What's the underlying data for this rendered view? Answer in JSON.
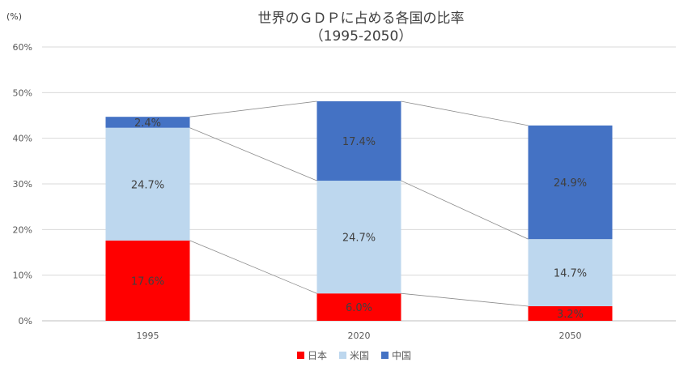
{
  "chart_data": {
    "type": "bar",
    "stacked": true,
    "title": "世界のＧＤＰに占める各国の比率",
    "subtitle": "（1995-2050）",
    "ylabel": "(%)",
    "ylim": [
      0,
      60
    ],
    "yticks": [
      0,
      10,
      20,
      30,
      40,
      50,
      60
    ],
    "ytick_labels": [
      "0%",
      "10%",
      "20%",
      "30%",
      "40%",
      "50%",
      "60%"
    ],
    "grid": true,
    "legend_position": "bottom",
    "categories": [
      "1995",
      "2020",
      "2050"
    ],
    "series": [
      {
        "name": "日本",
        "color": "#ff0000",
        "values": [
          17.6,
          6.0,
          3.2
        ],
        "labels": [
          "17.6%",
          "6.0%",
          "3.2%"
        ]
      },
      {
        "name": "米国",
        "color": "#bdd7ee",
        "values": [
          24.7,
          24.7,
          14.7
        ],
        "labels": [
          "24.7%",
          "24.7%",
          "14.7%"
        ]
      },
      {
        "name": "中国",
        "color": "#4472c4",
        "values": [
          2.4,
          17.4,
          24.9
        ],
        "labels": [
          "2.4%",
          "17.4%",
          "24.9%"
        ]
      }
    ],
    "series_lines": true
  }
}
